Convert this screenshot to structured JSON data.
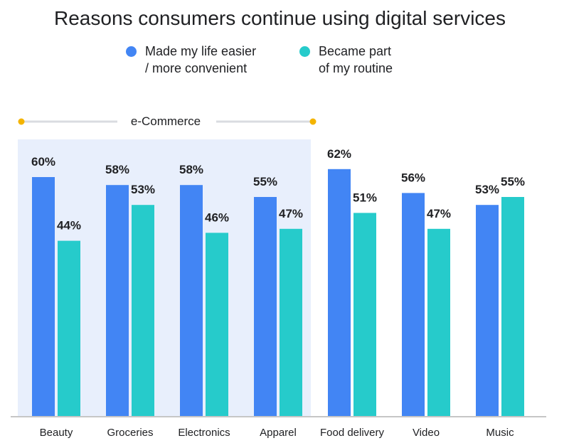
{
  "chart_data": {
    "type": "bar",
    "title": "Reasons consumers continue using digital services",
    "xlabel": "",
    "ylabel": "",
    "ylim": [
      0,
      70
    ],
    "grid": false,
    "legend_position": "top-center",
    "categories": [
      "Beauty",
      "Groceries",
      "Electronics",
      "Apparel",
      "Food delivery",
      "Video",
      "Music"
    ],
    "series": [
      {
        "name": "Made my life easier / more convenient",
        "legend_lines": [
          "Made my life easier",
          "/ more convenient"
        ],
        "color": "#4285f4",
        "values": [
          60,
          58,
          58,
          55,
          62,
          56,
          53
        ],
        "labels": [
          "60%",
          "58%",
          "58%",
          "55%",
          "62%",
          "56%",
          "53%"
        ]
      },
      {
        "name": "Became part of my routine",
        "legend_lines": [
          "Became part",
          "of my routine"
        ],
        "color": "#26cbcb",
        "values": [
          44,
          53,
          46,
          47,
          51,
          47,
          55
        ],
        "labels": [
          "44%",
          "53%",
          "46%",
          "47%",
          "51%",
          "47%",
          "55%"
        ]
      }
    ],
    "group": {
      "label": "e-Commerce",
      "categories": [
        "Beauty",
        "Groceries",
        "Electronics",
        "Apparel"
      ],
      "shade_color": "#e8effc",
      "marker_color": "#f4b400",
      "line_color": "#dadce0"
    }
  }
}
